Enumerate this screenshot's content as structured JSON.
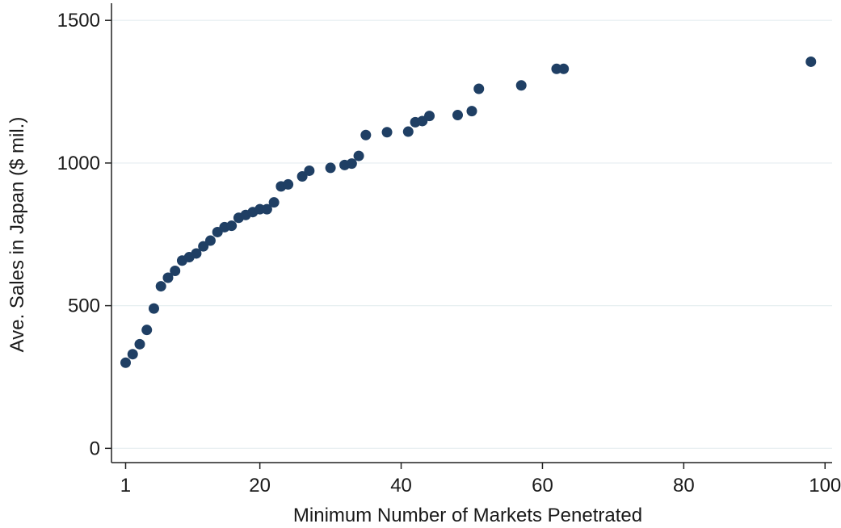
{
  "chart_data": {
    "type": "scatter",
    "title": "",
    "xlabel": "Minimum Number of Markets Penetrated",
    "ylabel": "Ave. Sales in Japan ($ mil.)",
    "xlim": [
      -1,
      101
    ],
    "ylim": [
      -50,
      1560
    ],
    "xticks": [
      1,
      20,
      40,
      60,
      80,
      100
    ],
    "yticks": [
      0,
      500,
      1000,
      1500
    ],
    "grid": "horizontal",
    "colors": {
      "marker": "#1f3f64",
      "grid": "#e6eef0",
      "axis": "#222222"
    },
    "points": [
      {
        "x": 1,
        "y": 300
      },
      {
        "x": 2,
        "y": 330
      },
      {
        "x": 3,
        "y": 365
      },
      {
        "x": 4,
        "y": 415
      },
      {
        "x": 5,
        "y": 490
      },
      {
        "x": 6,
        "y": 568
      },
      {
        "x": 7,
        "y": 598
      },
      {
        "x": 8,
        "y": 622
      },
      {
        "x": 9,
        "y": 658
      },
      {
        "x": 10,
        "y": 670
      },
      {
        "x": 11,
        "y": 683
      },
      {
        "x": 12,
        "y": 708
      },
      {
        "x": 13,
        "y": 728
      },
      {
        "x": 14,
        "y": 758
      },
      {
        "x": 15,
        "y": 775
      },
      {
        "x": 16,
        "y": 780
      },
      {
        "x": 17,
        "y": 808
      },
      {
        "x": 18,
        "y": 818
      },
      {
        "x": 19,
        "y": 828
      },
      {
        "x": 20,
        "y": 838
      },
      {
        "x": 21,
        "y": 838
      },
      {
        "x": 22,
        "y": 862
      },
      {
        "x": 23,
        "y": 918
      },
      {
        "x": 24,
        "y": 925
      },
      {
        "x": 26,
        "y": 953
      },
      {
        "x": 27,
        "y": 973
      },
      {
        "x": 30,
        "y": 983
      },
      {
        "x": 32,
        "y": 993
      },
      {
        "x": 33,
        "y": 998
      },
      {
        "x": 34,
        "y": 1025
      },
      {
        "x": 35,
        "y": 1098
      },
      {
        "x": 38,
        "y": 1108
      },
      {
        "x": 41,
        "y": 1110
      },
      {
        "x": 42,
        "y": 1143
      },
      {
        "x": 43,
        "y": 1147
      },
      {
        "x": 44,
        "y": 1165
      },
      {
        "x": 48,
        "y": 1168
      },
      {
        "x": 50,
        "y": 1182
      },
      {
        "x": 51,
        "y": 1260
      },
      {
        "x": 57,
        "y": 1272
      },
      {
        "x": 62,
        "y": 1330
      },
      {
        "x": 63,
        "y": 1330
      },
      {
        "x": 98,
        "y": 1355
      }
    ]
  }
}
